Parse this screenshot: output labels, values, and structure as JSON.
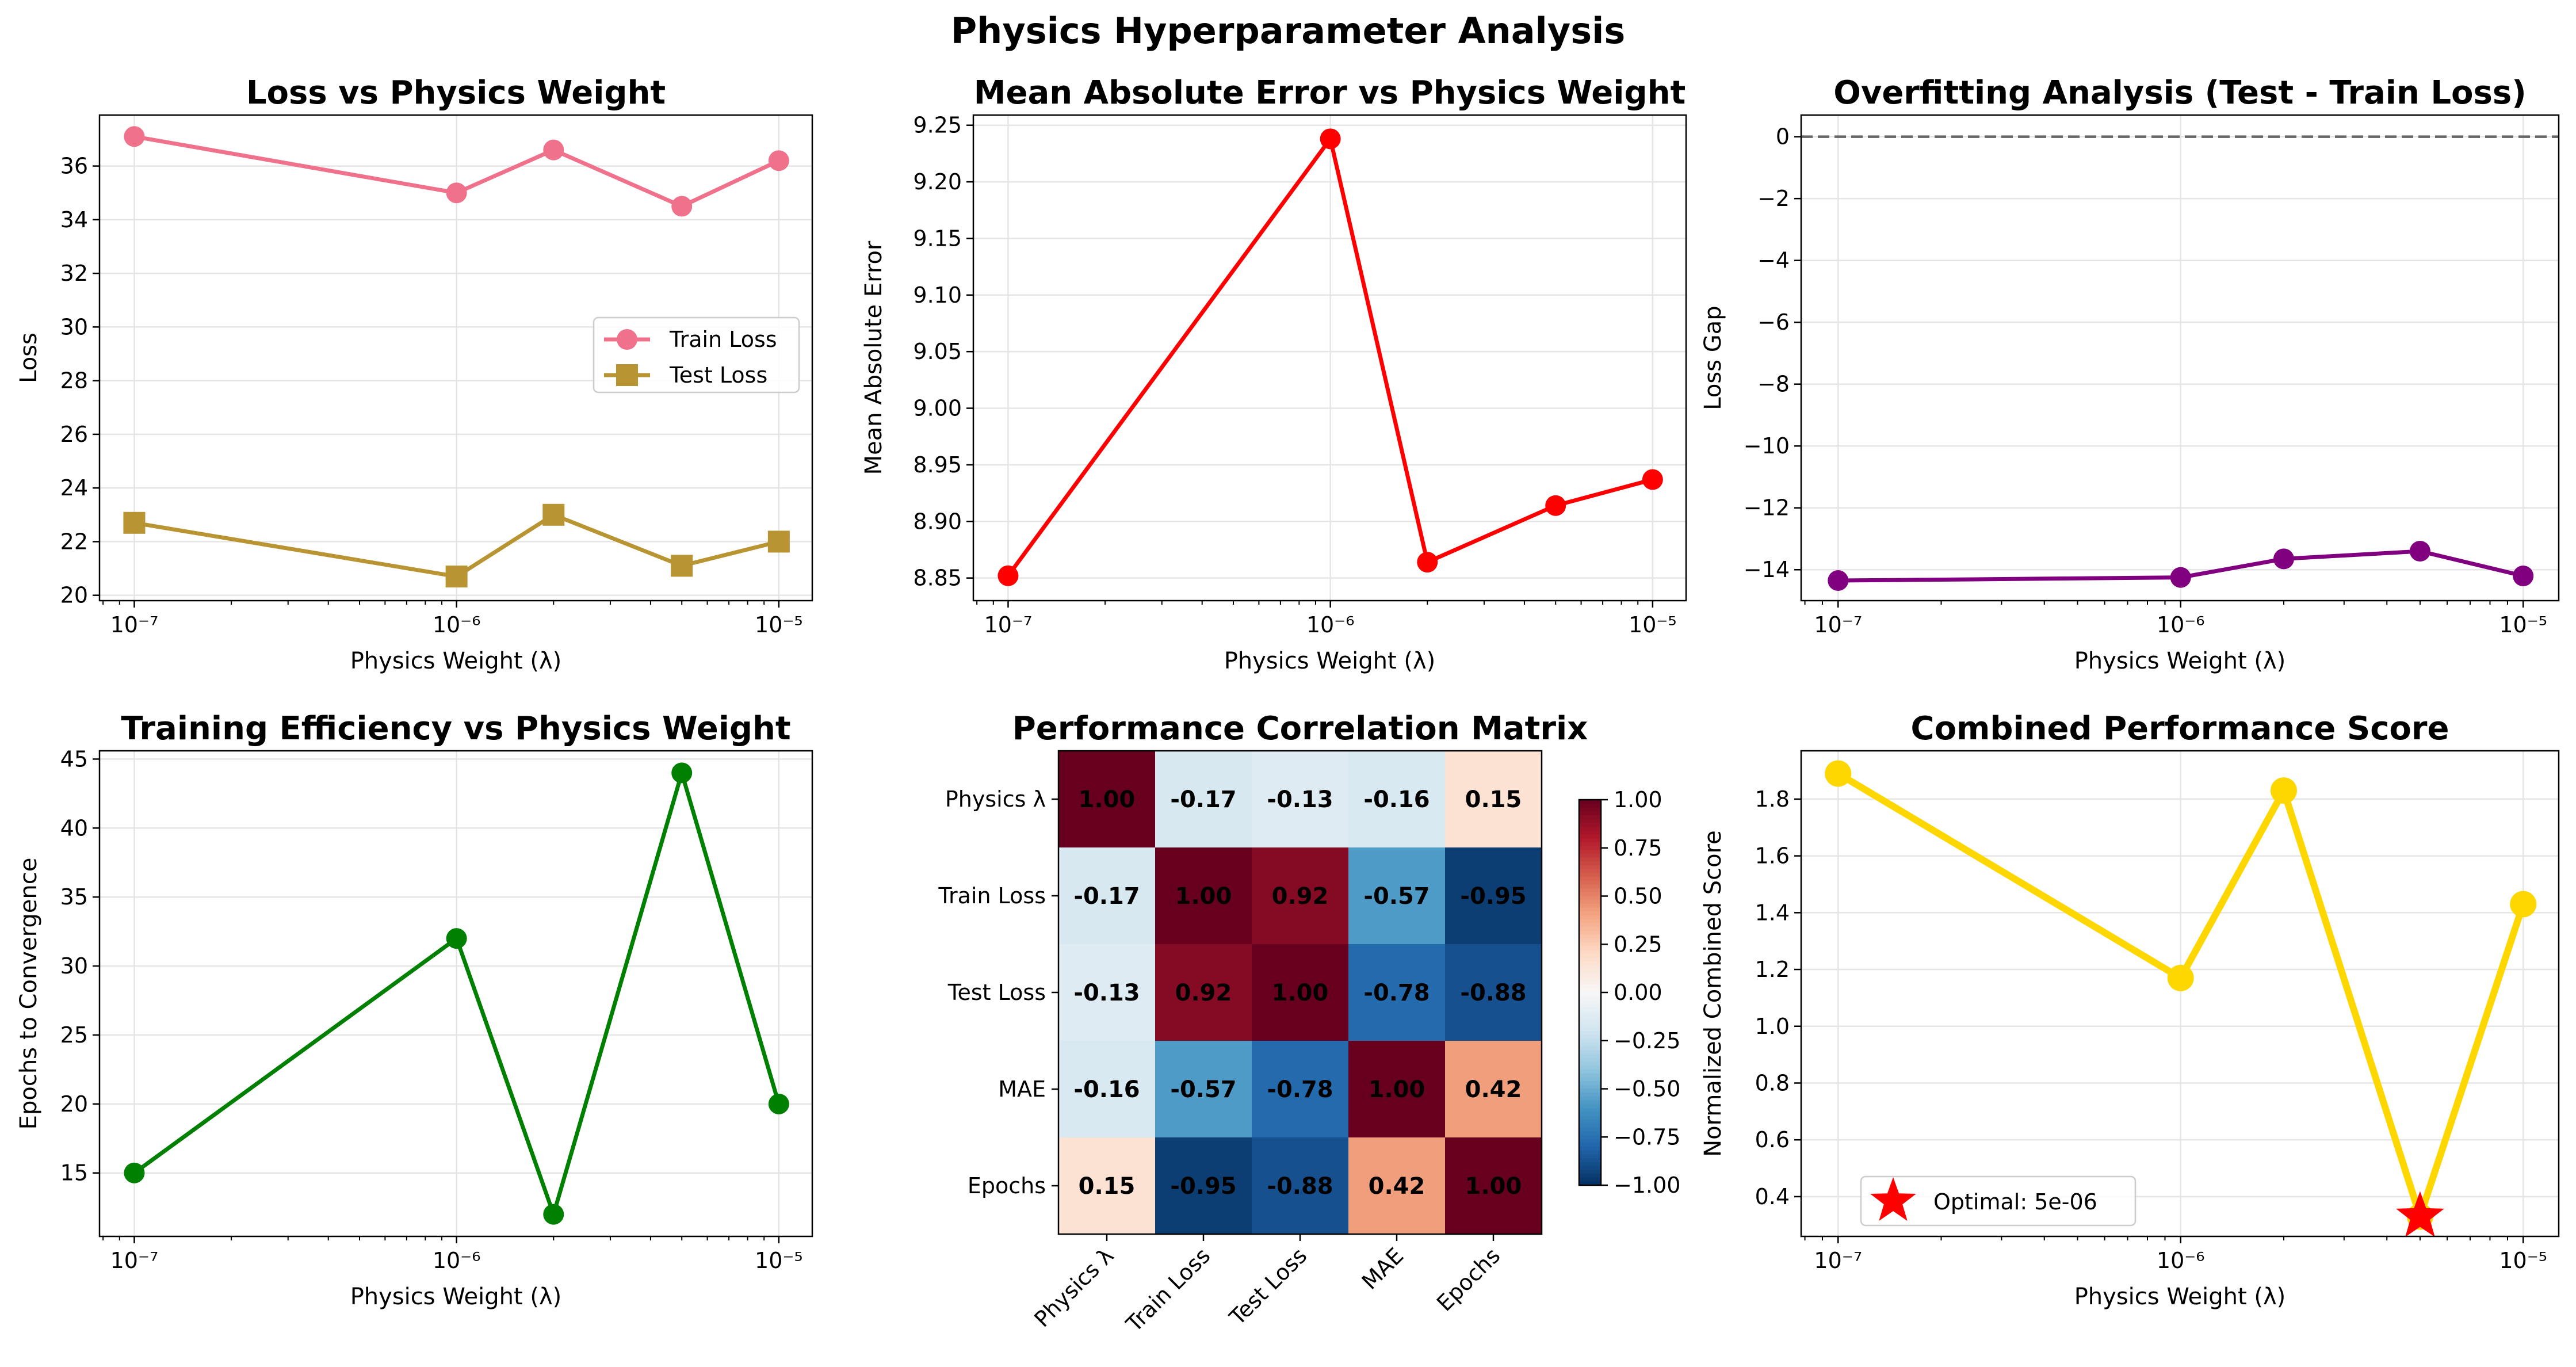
{
  "figure": {
    "suptitle": "Physics Hyperparameter Analysis"
  },
  "chart_data": [
    {
      "id": "loss",
      "type": "line",
      "title": "Loss vs Physics Weight",
      "xlabel": "Physics Weight (λ)",
      "ylabel": "Loss",
      "xscale": "log",
      "x": [
        1e-07,
        1e-06,
        2e-06,
        5e-06,
        1e-05
      ],
      "xlim": [
        7.8e-08,
        1.27e-05
      ],
      "ylim": [
        19.8,
        37.9
      ],
      "xticks": [
        {
          "v": 1e-07,
          "label": "10⁻⁷"
        },
        {
          "v": 1e-06,
          "label": "10⁻⁶"
        },
        {
          "v": 1e-05,
          "label": "10⁻⁵"
        }
      ],
      "yticks": [
        {
          "v": 20,
          "label": "20"
        },
        {
          "v": 22,
          "label": "22"
        },
        {
          "v": 24,
          "label": "24"
        },
        {
          "v": 26,
          "label": "26"
        },
        {
          "v": 28,
          "label": "28"
        },
        {
          "v": 30,
          "label": "30"
        },
        {
          "v": 32,
          "label": "32"
        },
        {
          "v": 34,
          "label": "34"
        },
        {
          "v": 36,
          "label": "36"
        }
      ],
      "grid": true,
      "legend": "center-right",
      "series": [
        {
          "name": "Train Loss",
          "values": [
            37.1,
            35.0,
            36.6,
            34.5,
            36.2
          ],
          "color": "#f0718b",
          "marker": "circle"
        },
        {
          "name": "Test Loss",
          "values": [
            22.7,
            20.7,
            23.0,
            21.1,
            22.0
          ],
          "color": "#b99432",
          "marker": "square"
        }
      ]
    },
    {
      "id": "mae",
      "type": "line",
      "title": "Mean Absolute Error vs Physics Weight",
      "xlabel": "Physics Weight (λ)",
      "ylabel": "Mean Absolute Error",
      "xscale": "log",
      "x": [
        1e-07,
        1e-06,
        2e-06,
        5e-06,
        1e-05
      ],
      "xlim": [
        7.8e-08,
        1.27e-05
      ],
      "ylim": [
        8.83,
        9.259
      ],
      "xticks": [
        {
          "v": 1e-07,
          "label": "10⁻⁷"
        },
        {
          "v": 1e-06,
          "label": "10⁻⁶"
        },
        {
          "v": 1e-05,
          "label": "10⁻⁵"
        }
      ],
      "yticks": [
        {
          "v": 8.85,
          "label": "8.85"
        },
        {
          "v": 8.9,
          "label": "8.90"
        },
        {
          "v": 8.95,
          "label": "8.95"
        },
        {
          "v": 9.0,
          "label": "9.00"
        },
        {
          "v": 9.05,
          "label": "9.05"
        },
        {
          "v": 9.1,
          "label": "9.10"
        },
        {
          "v": 9.15,
          "label": "9.15"
        },
        {
          "v": 9.2,
          "label": "9.20"
        },
        {
          "v": 9.25,
          "label": "9.25"
        }
      ],
      "grid": true,
      "series": [
        {
          "values": [
            8.852,
            9.238,
            8.864,
            8.914,
            8.937
          ],
          "color": "#ff0000",
          "marker": "circle"
        }
      ]
    },
    {
      "id": "gap",
      "type": "line",
      "title": "Overfitting Analysis (Test - Train Loss)",
      "xlabel": "Physics Weight (λ)",
      "ylabel": "Loss Gap",
      "xscale": "log",
      "x": [
        1e-07,
        1e-06,
        2e-06,
        5e-06,
        1e-05
      ],
      "xlim": [
        7.8e-08,
        1.27e-05
      ],
      "ylim": [
        -15.0,
        0.7
      ],
      "xticks": [
        {
          "v": 1e-07,
          "label": "10⁻⁷"
        },
        {
          "v": 1e-06,
          "label": "10⁻⁶"
        },
        {
          "v": 1e-05,
          "label": "10⁻⁵"
        }
      ],
      "yticks": [
        {
          "v": 0,
          "label": "0"
        },
        {
          "v": -2,
          "label": "−2"
        },
        {
          "v": -4,
          "label": "−4"
        },
        {
          "v": -6,
          "label": "−6"
        },
        {
          "v": -8,
          "label": "−8"
        },
        {
          "v": -10,
          "label": "−10"
        },
        {
          "v": -12,
          "label": "−12"
        },
        {
          "v": -14,
          "label": "−14"
        }
      ],
      "grid": true,
      "hline": 0,
      "series": [
        {
          "values": [
            -14.35,
            -14.25,
            -13.65,
            -13.4,
            -14.2
          ],
          "color": "#800080",
          "marker": "circle"
        }
      ]
    },
    {
      "id": "epochs",
      "type": "line",
      "title": "Training Efficiency vs Physics Weight",
      "xlabel": "Physics Weight (λ)",
      "ylabel": "Epochs to Convergence",
      "xscale": "log",
      "x": [
        1e-07,
        1e-06,
        2e-06,
        5e-06,
        1e-05
      ],
      "xlim": [
        7.8e-08,
        1.27e-05
      ],
      "ylim": [
        10.4,
        45.6
      ],
      "xticks": [
        {
          "v": 1e-07,
          "label": "10⁻⁷"
        },
        {
          "v": 1e-06,
          "label": "10⁻⁶"
        },
        {
          "v": 1e-05,
          "label": "10⁻⁵"
        }
      ],
      "yticks": [
        {
          "v": 15,
          "label": "15"
        },
        {
          "v": 20,
          "label": "20"
        },
        {
          "v": 25,
          "label": "25"
        },
        {
          "v": 30,
          "label": "30"
        },
        {
          "v": 35,
          "label": "35"
        },
        {
          "v": 40,
          "label": "40"
        },
        {
          "v": 45,
          "label": "45"
        }
      ],
      "grid": true,
      "series": [
        {
          "values": [
            15,
            32,
            12,
            44,
            20
          ],
          "color": "#008000",
          "marker": "circle"
        }
      ]
    },
    {
      "id": "corr",
      "type": "heatmap",
      "title": "Performance Correlation Matrix",
      "labels": [
        "Physics λ",
        "Train Loss",
        "Test Loss",
        "MAE",
        "Epochs"
      ],
      "matrix": [
        [
          1.0,
          -0.17,
          -0.13,
          -0.16,
          0.15
        ],
        [
          -0.17,
          1.0,
          0.92,
          -0.57,
          -0.95
        ],
        [
          -0.13,
          0.92,
          1.0,
          -0.78,
          -0.88
        ],
        [
          -0.16,
          -0.57,
          -0.78,
          1.0,
          0.42
        ],
        [
          0.15,
          -0.95,
          -0.88,
          0.42,
          1.0
        ]
      ],
      "cell_labels": [
        [
          "1.00",
          "-0.17",
          "-0.13",
          "-0.16",
          "0.15"
        ],
        [
          "-0.17",
          "1.00",
          "0.92",
          "-0.57",
          "-0.95"
        ],
        [
          "-0.13",
          "0.92",
          "1.00",
          "-0.78",
          "-0.88"
        ],
        [
          "-0.16",
          "-0.57",
          "-0.78",
          "1.00",
          "0.42"
        ],
        [
          "0.15",
          "-0.95",
          "-0.88",
          "0.42",
          "1.00"
        ]
      ],
      "colormap": "RdBu_r",
      "vmin": -1.0,
      "vmax": 1.0,
      "colorbar_ticks": [
        {
          "v": 1.0,
          "label": "1.00"
        },
        {
          "v": 0.75,
          "label": "0.75"
        },
        {
          "v": 0.5,
          "label": "0.50"
        },
        {
          "v": 0.25,
          "label": "0.25"
        },
        {
          "v": 0.0,
          "label": "0.00"
        },
        {
          "v": -0.25,
          "label": "−0.25"
        },
        {
          "v": -0.5,
          "label": "−0.50"
        },
        {
          "v": -0.75,
          "label": "−0.75"
        },
        {
          "v": -1.0,
          "label": "−1.00"
        }
      ]
    },
    {
      "id": "score",
      "type": "line",
      "title": "Combined Performance Score",
      "xlabel": "Physics Weight (λ)",
      "ylabel": "Normalized Combined Score",
      "xscale": "log",
      "x": [
        1e-07,
        1e-06,
        2e-06,
        5e-06,
        1e-05
      ],
      "xlim": [
        7.8e-08,
        1.27e-05
      ],
      "ylim": [
        0.26,
        1.97
      ],
      "xticks": [
        {
          "v": 1e-07,
          "label": "10⁻⁷"
        },
        {
          "v": 1e-06,
          "label": "10⁻⁶"
        },
        {
          "v": 1e-05,
          "label": "10⁻⁵"
        }
      ],
      "yticks": [
        {
          "v": 0.4,
          "label": "0.4"
        },
        {
          "v": 0.6,
          "label": "0.6"
        },
        {
          "v": 0.8,
          "label": "0.8"
        },
        {
          "v": 1.0,
          "label": "1.0"
        },
        {
          "v": 1.2,
          "label": "1.2"
        },
        {
          "v": 1.4,
          "label": "1.4"
        },
        {
          "v": 1.6,
          "label": "1.6"
        },
        {
          "v": 1.8,
          "label": "1.8"
        }
      ],
      "grid": true,
      "legend": "lower-left",
      "series": [
        {
          "values": [
            1.89,
            1.17,
            1.83,
            0.33,
            1.43
          ],
          "color": "#ffd700",
          "marker": "circle"
        }
      ],
      "optimal": {
        "x": 5e-06,
        "y": 0.33,
        "label": "Optimal: 5e-06",
        "color": "#ff0000",
        "marker": "star"
      }
    }
  ]
}
